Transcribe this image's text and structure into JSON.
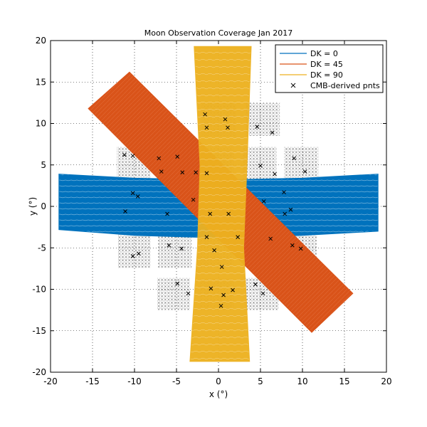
{
  "chart_data": {
    "type": "scatter",
    "title": "Moon Observation Coverage Jan 2017",
    "xlabel": "x (°)",
    "ylabel": "y (°)",
    "xlim": [
      -20,
      20
    ],
    "ylim": [
      -20,
      20
    ],
    "xticks": [
      -20,
      -15,
      -10,
      -5,
      0,
      5,
      10,
      15,
      20
    ],
    "yticks": [
      -20,
      -15,
      -10,
      -5,
      0,
      5,
      10,
      15,
      20
    ],
    "xtick_labels": [
      "-20",
      "-15",
      "-10",
      "-5",
      "0",
      "5",
      "10",
      "15",
      "20"
    ],
    "ytick_labels": [
      "-20",
      "-15",
      "-10",
      "-5",
      "0",
      "5",
      "10",
      "15",
      "20"
    ],
    "grid": true,
    "legend_position": "top-right",
    "series": [
      {
        "name": "DK = 0",
        "color": "#0072bd",
        "region": [
          [
            -19,
            3.9
          ],
          [
            -10,
            3.4
          ],
          [
            0,
            3.2
          ],
          [
            10,
            3.4
          ],
          [
            19,
            3.9
          ],
          [
            19,
            -3.0
          ],
          [
            10,
            -3.5
          ],
          [
            0,
            -3.8
          ],
          [
            -10,
            -3.5
          ],
          [
            -19,
            -2.8
          ]
        ]
      },
      {
        "name": "DK = 45",
        "color": "#d95319",
        "region": [
          [
            -15.5,
            11.8
          ],
          [
            -10.6,
            16.2
          ],
          [
            16.0,
            -10.5
          ],
          [
            11.1,
            -15.2
          ]
        ]
      },
      {
        "name": "DK = 90",
        "color": "#edb120",
        "region": [
          [
            -2.9,
            19.3
          ],
          [
            3.9,
            19.3
          ],
          [
            3.4,
            5
          ],
          [
            3.0,
            -5
          ],
          [
            3.7,
            -18.7
          ],
          [
            -3.4,
            -18.7
          ],
          [
            -2.5,
            -5
          ],
          [
            -2.2,
            5
          ]
        ]
      },
      {
        "name": "CMB-derived pnts",
        "color": "#000000",
        "marker": "x",
        "grid_blocks": [
          [
            -2,
            12.5,
            2,
            8.5
          ],
          [
            3.2,
            12.5,
            7.3,
            8.5
          ],
          [
            -12.1,
            7.2,
            -8.1,
            3.3
          ],
          [
            -7.3,
            7.2,
            -3.3,
            3.3
          ],
          [
            -2.3,
            7.2,
            1.8,
            3.3
          ],
          [
            2.9,
            7.2,
            6.9,
            3.3
          ],
          [
            7.8,
            7.2,
            11.9,
            3.3
          ],
          [
            -12.3,
            2.1,
            -8.4,
            -2.1
          ],
          [
            -7.4,
            2.1,
            -3.4,
            -2.1
          ],
          [
            -2.4,
            2.1,
            1.6,
            -2.1
          ],
          [
            2.6,
            2.1,
            6.6,
            -2.1
          ],
          [
            7.5,
            2.1,
            11.5,
            -2.1
          ],
          [
            -12,
            -3.3,
            -8.1,
            -7.4
          ],
          [
            -7.2,
            -3.3,
            -3.2,
            -7.4
          ],
          [
            -2.2,
            -3.3,
            1.8,
            -7.4
          ],
          [
            2.8,
            -3.3,
            6.8,
            -7.4
          ],
          [
            7.7,
            -3.3,
            11.7,
            -7.4
          ],
          [
            -7.3,
            -8.6,
            -3.4,
            -12.5
          ],
          [
            -2.2,
            -8.6,
            1.8,
            -12.5
          ],
          [
            3.2,
            -8.6,
            7.2,
            -12.5
          ]
        ],
        "x": [
          -1.6,
          0.8,
          -1.4,
          1.1,
          4.6,
          6.4,
          -11.2,
          -10.2,
          -7.1,
          -4.9,
          -6.8,
          -4.3,
          -2.7,
          -1.4,
          5.0,
          6.7,
          9.0,
          10.3,
          -10.2,
          -9.6,
          -11.1,
          -6.1,
          -3.0,
          -1.0,
          1.2,
          5.4,
          7.9,
          7.8,
          8.6,
          -9.5,
          -10.2,
          -5.9,
          -4.4,
          -1.4,
          -0.5,
          0.4,
          2.3,
          6.2,
          8.8,
          9.8,
          -4.9,
          -3.6,
          -0.9,
          0.6,
          4.4,
          5.3,
          1.7,
          0.3
        ],
        "y": [
          11.1,
          10.5,
          9.5,
          9.5,
          9.6,
          8.9,
          6.2,
          6.1,
          5.8,
          6.0,
          4.2,
          4.1,
          4.1,
          4.0,
          4.9,
          3.9,
          5.8,
          4.2,
          1.6,
          1.2,
          -0.6,
          -0.9,
          0.8,
          -0.9,
          -0.9,
          0.6,
          -0.9,
          1.7,
          -0.4,
          -5.7,
          -6.0,
          -4.7,
          -5.1,
          -3.7,
          -5.3,
          -7.3,
          -3.7,
          -3.9,
          -4.7,
          -5.1,
          -9.3,
          -10.5,
          -9.9,
          -10.7,
          -9.4,
          -10.5,
          -10.1,
          -12.0
        ]
      }
    ]
  }
}
